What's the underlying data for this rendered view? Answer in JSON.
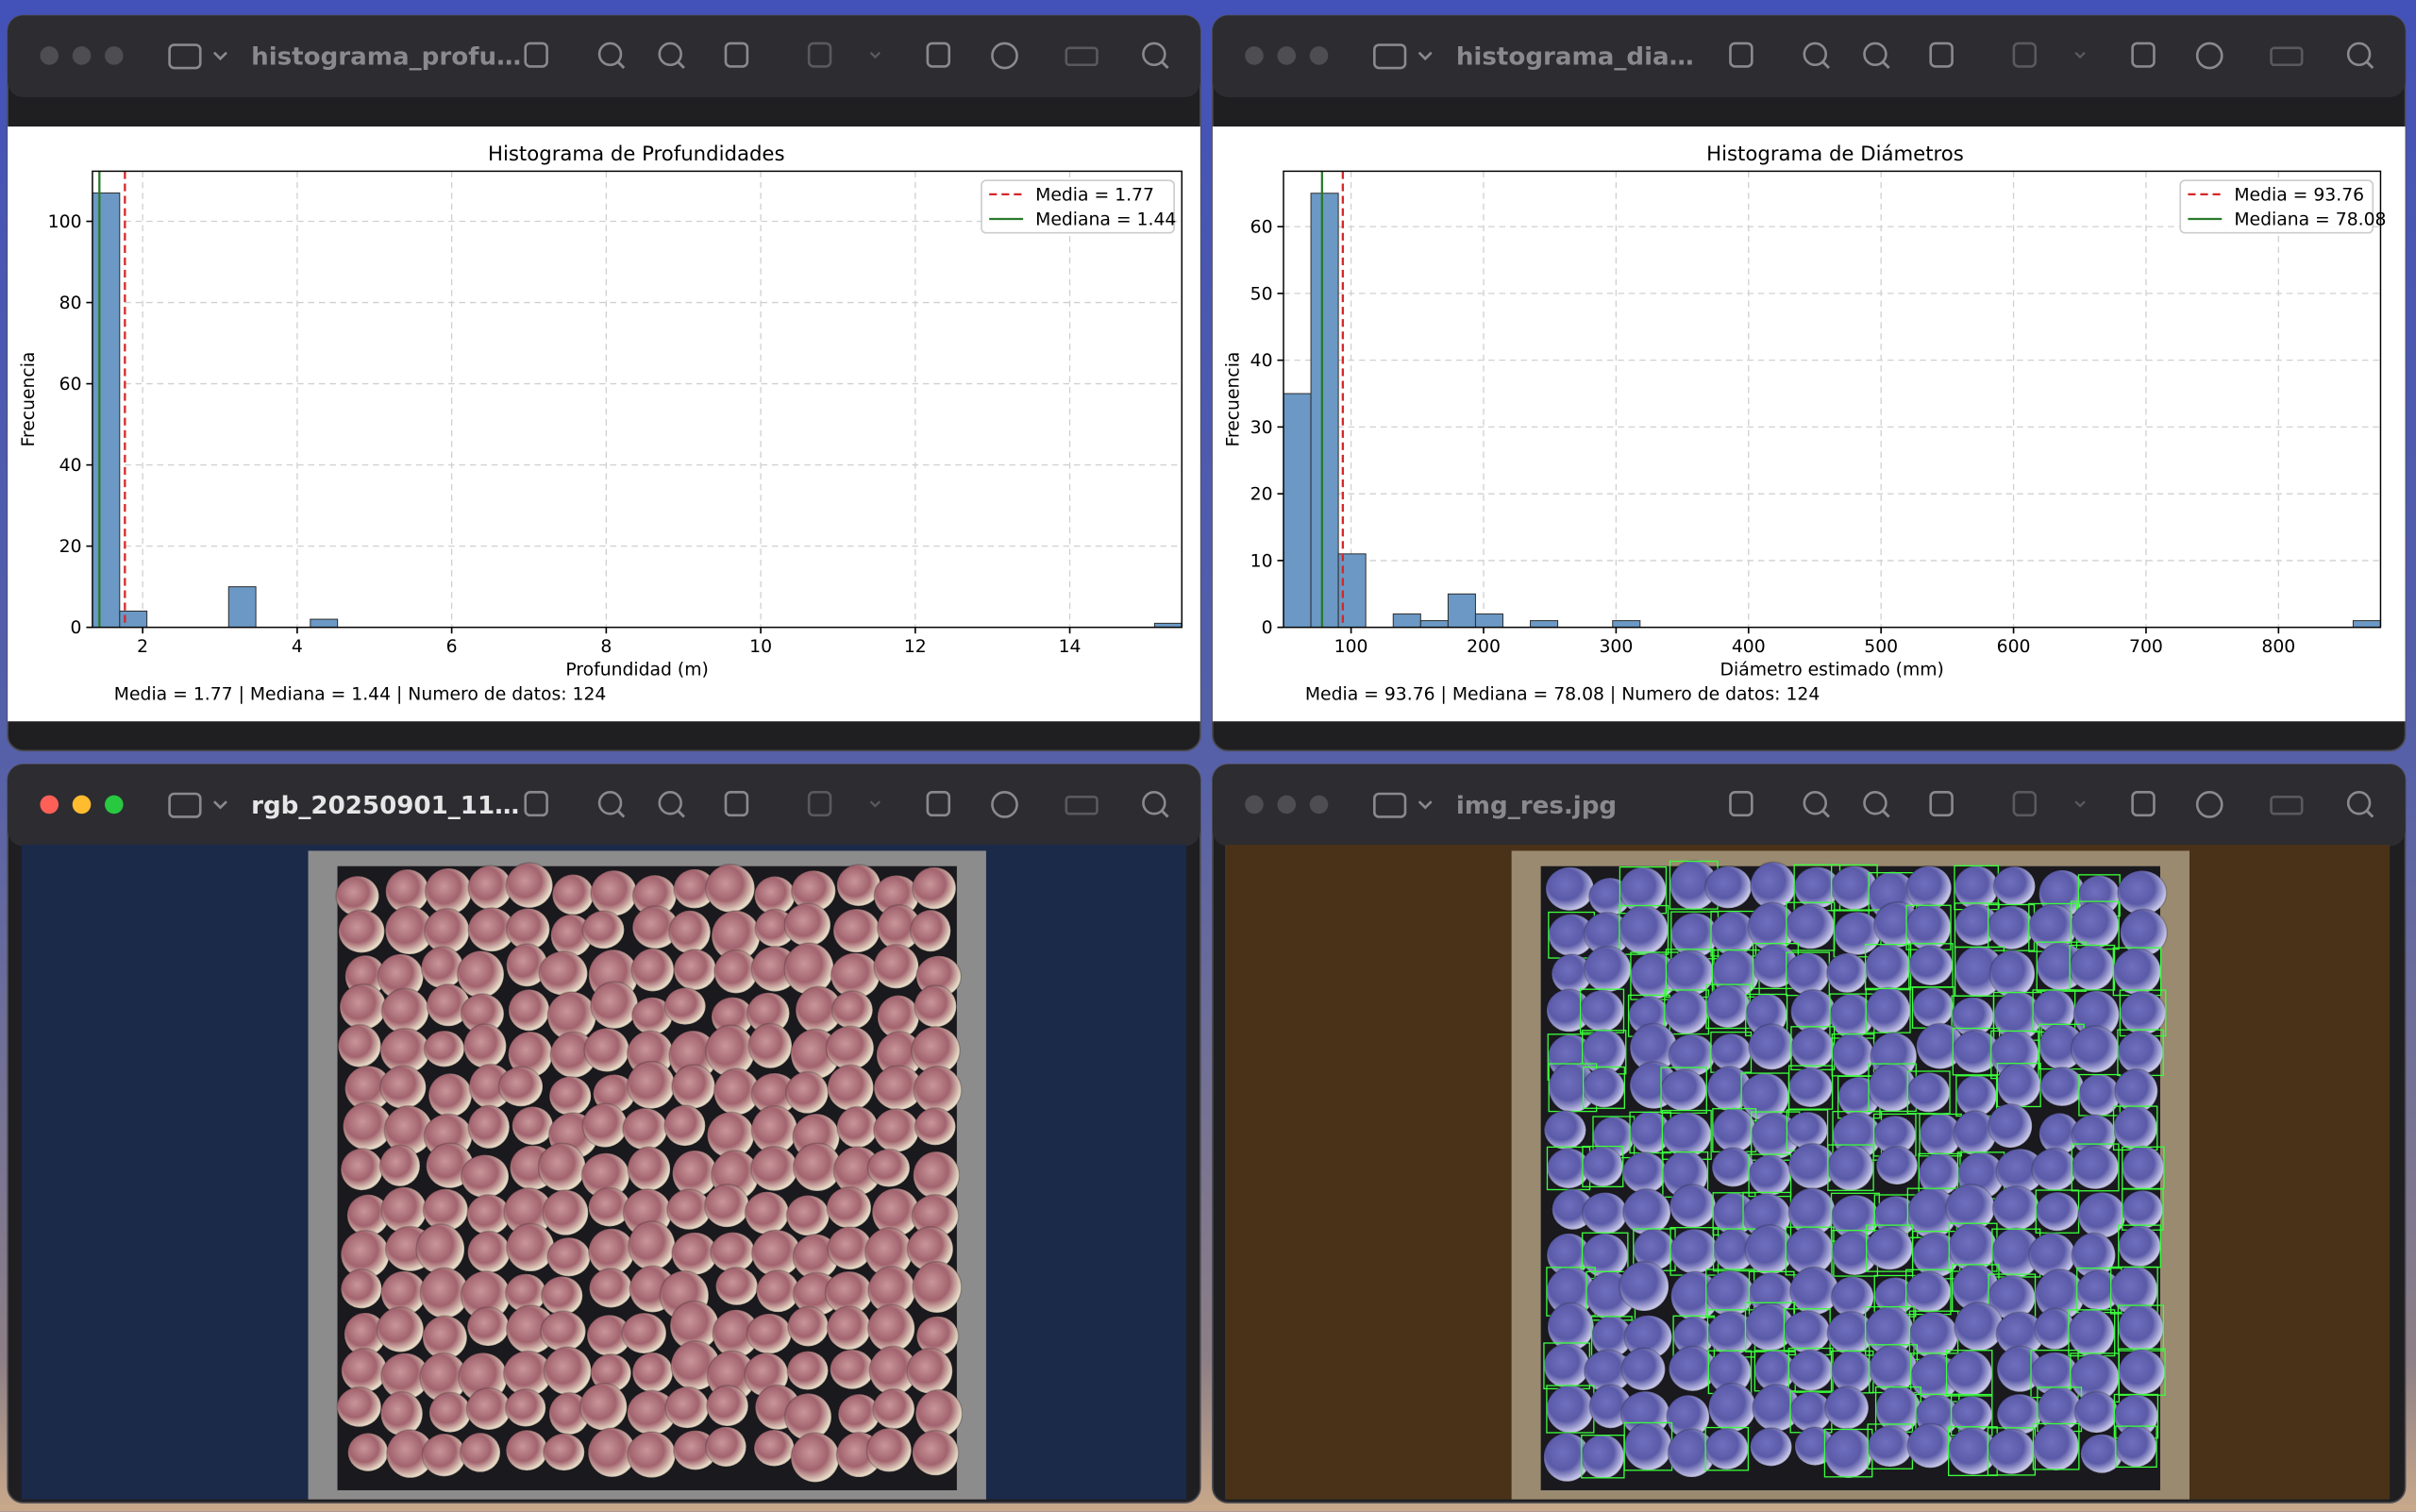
{
  "windows": [
    {
      "title": "histograma_profu…"
    },
    {
      "title": "histograma_dia…"
    },
    {
      "title": "rgb_20250901_11…"
    },
    {
      "title": "img_res.jpg"
    }
  ],
  "chart_data": [
    {
      "type": "histogram",
      "title": "Histograma de Profundidades",
      "xlabel": "Profundidad (m)",
      "ylabel": "Frecuencia",
      "bins": [
        1.35,
        1.7025,
        2.055,
        2.4075,
        2.76,
        3.1125,
        3.465,
        3.8175,
        4.17,
        4.5225,
        4.875,
        5.2275,
        5.58,
        5.9325,
        6.285,
        6.6375,
        6.99,
        7.3425,
        7.695,
        8.0475,
        8.4,
        8.7525,
        9.105,
        9.4575,
        9.81,
        10.1625,
        10.515,
        10.8675,
        11.22,
        11.5725,
        11.925,
        12.2775,
        12.63,
        12.9825,
        13.335,
        13.6875,
        14.04,
        14.3925,
        14.745,
        15.0975,
        15.45
      ],
      "values": [
        107,
        4,
        0,
        0,
        0,
        10,
        0,
        0,
        2,
        0,
        0,
        0,
        0,
        0,
        0,
        0,
        0,
        0,
        0,
        0,
        0,
        0,
        0,
        0,
        0,
        0,
        0,
        0,
        0,
        0,
        0,
        0,
        0,
        0,
        0,
        0,
        0,
        0,
        0,
        1
      ],
      "color": "#6b98c4",
      "xlim": [
        1.35,
        15.45
      ],
      "ylim": [
        0,
        112.35
      ],
      "xticks": [
        2,
        4,
        6,
        8,
        10,
        12,
        14
      ],
      "yticks": [
        0,
        20,
        40,
        60,
        80,
        100
      ],
      "grid": true,
      "legend": "upper right",
      "lines": [
        {
          "name": "Media = 1.77",
          "value": 1.77,
          "color": "#d62728",
          "style": "dashed"
        },
        {
          "name": "Mediana = 1.44",
          "value": 1.44,
          "color": "#2a7a2a",
          "style": "solid"
        }
      ],
      "caption": "Media = 1.77 | Mediana = 1.44 | Numero de datos: 124"
    },
    {
      "type": "histogram",
      "title": "Histograma de Diámetros",
      "xlabel": "Diámetro estimado (mm)",
      "ylabel": "Frecuencia",
      "bins": [
        49,
        69.7,
        90.4,
        111.1,
        131.8,
        152.5,
        173.2,
        193.9,
        214.6,
        235.3,
        256,
        276.7,
        297.4,
        318.1,
        338.8,
        359.5,
        380.2,
        400.9,
        421.6,
        442.3,
        463,
        483.7,
        504.4,
        525.1,
        545.8,
        566.5,
        587.2,
        607.9,
        628.6,
        649.3,
        670,
        690.7,
        711.4,
        732.1,
        752.8,
        773.5,
        794.2,
        814.9,
        835.6,
        856.3,
        877
      ],
      "values": [
        35,
        65,
        11,
        0,
        2,
        1,
        5,
        2,
        0,
        1,
        0,
        0,
        1,
        0,
        0,
        0,
        0,
        0,
        0,
        0,
        0,
        0,
        0,
        0,
        0,
        0,
        0,
        0,
        0,
        0,
        0,
        0,
        0,
        0,
        0,
        0,
        0,
        0,
        0,
        1
      ],
      "color": "#6b98c4",
      "xlim": [
        49,
        877
      ],
      "ylim": [
        0,
        68.3
      ],
      "xticks": [
        100,
        200,
        300,
        400,
        500,
        600,
        700,
        800
      ],
      "yticks": [
        0,
        10,
        20,
        30,
        40,
        50,
        60
      ],
      "grid": true,
      "legend": "upper right",
      "lines": [
        {
          "name": "Media = 93.76",
          "value": 93.76,
          "color": "#d62728",
          "style": "dashed"
        },
        {
          "name": "Mediana = 78.08",
          "value": 78.08,
          "color": "#2a7a2a",
          "style": "solid"
        }
      ],
      "caption": "Media = 93.76 | Mediana = 78.08 | Numero de datos: 124"
    }
  ]
}
